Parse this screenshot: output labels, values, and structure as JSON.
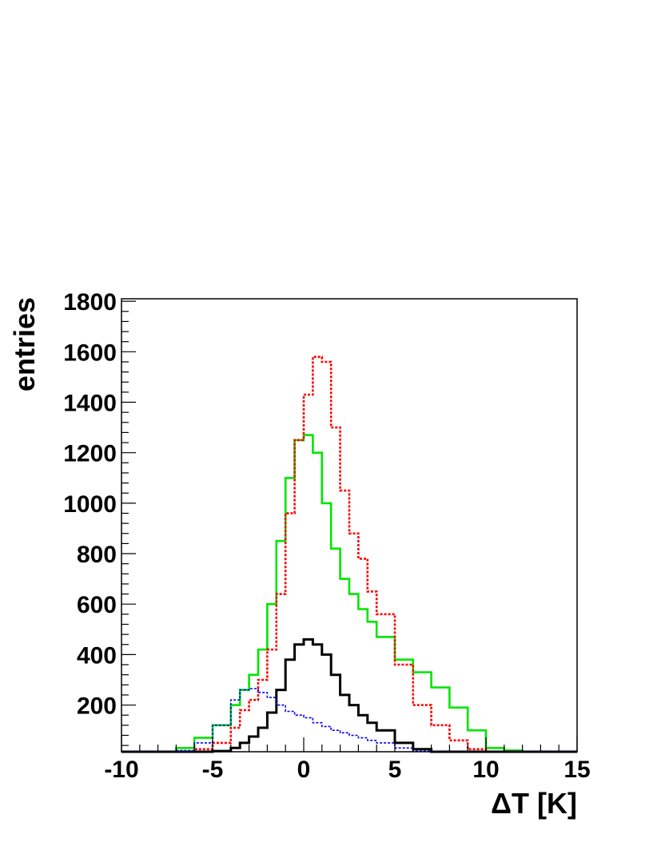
{
  "chart_data": {
    "type": "line",
    "title": "",
    "xlabel": "ΔT [K]",
    "ylabel": "entries",
    "xlim": [
      -10,
      15
    ],
    "ylim": [
      15,
      1810
    ],
    "xticks": [
      -10,
      -5,
      0,
      5,
      10,
      15
    ],
    "yticks": [
      200,
      400,
      600,
      800,
      1000,
      1200,
      1400,
      1600,
      1800
    ],
    "grid": false,
    "legend": "none",
    "x": [
      -10,
      -9,
      -8,
      -7,
      -6,
      -5,
      -4,
      -3.5,
      -3,
      -2.5,
      -2,
      -1.5,
      -1,
      -0.5,
      0,
      0.5,
      1,
      1.5,
      2,
      2.5,
      3,
      3.5,
      4,
      5,
      6,
      7,
      8,
      9,
      10,
      11,
      12,
      13,
      14,
      15
    ],
    "series": [
      {
        "color": "#00e600",
        "style": "solid",
        "values": [
          15,
          15,
          15,
          30,
          70,
          120,
          200,
          260,
          320,
          420,
          600,
          850,
          1100,
          1250,
          1270,
          1200,
          1000,
          820,
          700,
          640,
          580,
          530,
          470,
          380,
          330,
          270,
          190,
          100,
          30,
          20,
          15,
          15,
          15,
          15
        ]
      },
      {
        "color": "#ff0000",
        "style": "dotted",
        "values": [
          15,
          15,
          15,
          15,
          25,
          50,
          110,
          180,
          220,
          300,
          420,
          640,
          960,
          1250,
          1430,
          1580,
          1560,
          1300,
          1050,
          880,
          780,
          650,
          560,
          360,
          200,
          120,
          60,
          25,
          15,
          15,
          15,
          15,
          15,
          15
        ]
      },
      {
        "color": "#000000",
        "style": "solid",
        "values": [
          15,
          15,
          15,
          15,
          15,
          18,
          30,
          50,
          75,
          110,
          170,
          260,
          380,
          440,
          460,
          440,
          400,
          320,
          240,
          200,
          160,
          130,
          100,
          50,
          25,
          15,
          15,
          15,
          15,
          15,
          15,
          15,
          15,
          15
        ]
      },
      {
        "color": "#0000ff",
        "style": "dotted",
        "values": [
          15,
          15,
          15,
          20,
          50,
          120,
          220,
          260,
          265,
          250,
          230,
          200,
          175,
          160,
          150,
          130,
          115,
          100,
          90,
          80,
          70,
          60,
          50,
          30,
          18,
          15,
          15,
          15,
          15,
          15,
          15,
          15,
          15,
          15
        ]
      }
    ]
  }
}
